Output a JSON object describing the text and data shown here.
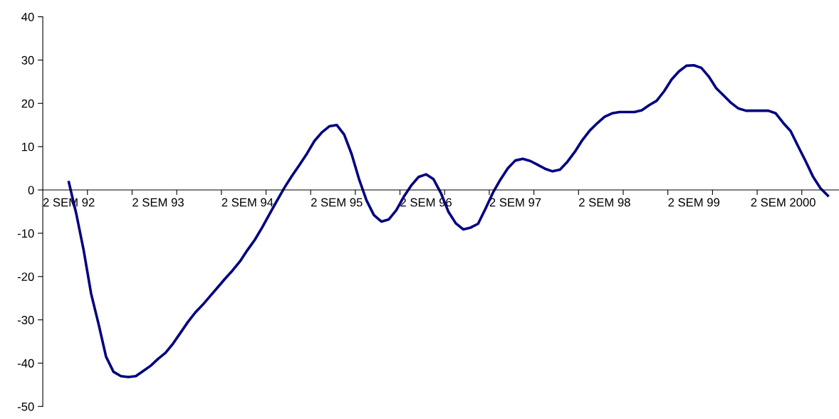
{
  "chart_data": {
    "type": "line",
    "categories": [
      null,
      null,
      null,
      "2 SEM 92",
      null,
      null,
      null,
      null,
      null,
      null,
      null,
      null,
      null,
      null,
      null,
      "2 SEM 93",
      null,
      null,
      null,
      null,
      null,
      null,
      null,
      null,
      null,
      null,
      null,
      "2 SEM 94",
      null,
      null,
      null,
      null,
      null,
      null,
      null,
      null,
      null,
      null,
      null,
      "2 SEM 95",
      null,
      null,
      null,
      null,
      null,
      null,
      null,
      null,
      null,
      null,
      null,
      "2 SEM 96",
      null,
      null,
      null,
      null,
      null,
      null,
      null,
      null,
      null,
      null,
      null,
      "2 SEM 97",
      null,
      null,
      null,
      null,
      null,
      null,
      null,
      null,
      null,
      null,
      null,
      "2 SEM 98",
      null,
      null,
      null,
      null,
      null,
      null,
      null,
      null,
      null,
      null,
      null,
      "2 SEM 99",
      null,
      null,
      null,
      null,
      null,
      null,
      null,
      null,
      null,
      null,
      null,
      "2 SEM 2000",
      null,
      null,
      null,
      null,
      null,
      null,
      null
    ],
    "values": [
      null,
      null,
      null,
      1.8,
      -5.5,
      -14,
      -24,
      -31,
      -38.5,
      -42,
      -43,
      -43.2,
      -43,
      -41.8,
      -40.6,
      -39,
      -37.6,
      -35.5,
      -33,
      -30.5,
      -28.3,
      -26.5,
      -24.5,
      -22.5,
      -20.5,
      -18.6,
      -16.5,
      -13.9,
      -11.5,
      -8.6,
      -5.5,
      -2.4,
      0.6,
      3.3,
      5.8,
      8.4,
      11.3,
      13.3,
      14.7,
      15.0,
      12.8,
      8.3,
      2.5,
      -2.4,
      -5.8,
      -7.3,
      -6.8,
      -4.7,
      -1.6,
      1.0,
      3.0,
      3.6,
      2.5,
      -0.7,
      -5,
      -7.7,
      -9.1,
      -8.7,
      -7.8,
      -4.3,
      -0.6,
      2.4,
      5,
      6.8,
      7.2,
      6.7,
      5.8,
      4.9,
      4.3,
      4.7,
      6.5,
      8.8,
      11.5,
      13.7,
      15.4,
      16.9,
      17.7,
      18,
      18,
      18,
      18.4,
      19.6,
      20.6,
      22.8,
      25.5,
      27.4,
      28.7,
      28.8,
      28.2,
      26.2,
      23.5,
      21.8,
      20.1,
      18.8,
      18.3,
      18.3,
      18.3,
      18.3,
      17.7,
      15.5,
      13.6,
      10.1,
      6.7,
      3.1,
      0.4,
      -1.3,
      null
    ],
    "color": "#000080",
    "ylim": [
      -50,
      40
    ],
    "yticks": [
      -50,
      -40,
      -30,
      -20,
      -10,
      0,
      10,
      20,
      30,
      40
    ],
    "grid": false,
    "legend": false,
    "marker": "none",
    "line_style": "solid"
  }
}
